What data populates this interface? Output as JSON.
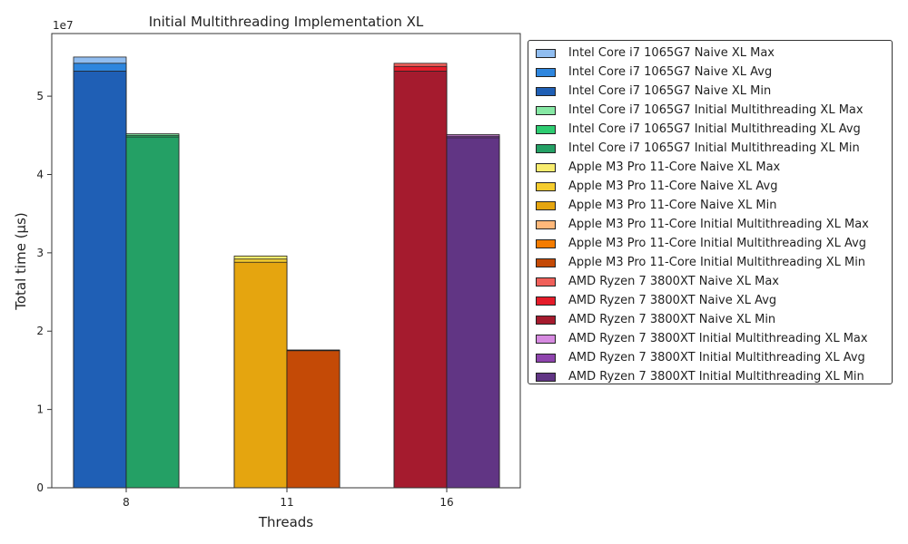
{
  "chart_data": {
    "type": "bar",
    "title": "Initial Multithreading Implementation XL",
    "xlabel": "Threads",
    "ylabel": "Total time (µs)",
    "y_multiplier_label": "1e7",
    "ylim": [
      0,
      58000000.0
    ],
    "yticks": [
      0,
      10000000.0,
      20000000.0,
      30000000.0,
      40000000.0,
      50000000.0
    ],
    "ytick_labels": [
      "0",
      "1",
      "2",
      "3",
      "4",
      "5"
    ],
    "categories": [
      "8",
      "11",
      "16"
    ],
    "legend_position": "outside-right",
    "grid": false,
    "groups": [
      {
        "threads": "8",
        "bars": [
          {
            "processor": "Intel Core i7 1065G7",
            "impl": "Naive XL",
            "max": 55000000.0,
            "avg": 54200000.0,
            "min": 53200000.0,
            "colors": {
              "max": "#90bdf0",
              "avg": "#2e86de",
              "min": "#1f5fb5"
            }
          },
          {
            "processor": "Intel Core i7 1065G7",
            "impl": "Initial Multithreading XL",
            "max": 45200000.0,
            "avg": 45000000.0,
            "min": 44800000.0,
            "colors": {
              "max": "#86e8a4",
              "avg": "#2ecc71",
              "min": "#24a065"
            }
          }
        ]
      },
      {
        "threads": "11",
        "bars": [
          {
            "processor": "Apple M3 Pro 11-Core",
            "impl": "Naive XL",
            "max": 29600000.0,
            "avg": 29200000.0,
            "min": 28800000.0,
            "colors": {
              "max": "#f8ec6e",
              "avg": "#f5cc2e",
              "min": "#e5a50f"
            }
          },
          {
            "processor": "Apple M3 Pro 11-Core",
            "impl": "Initial Multithreading XL",
            "max": 17600000.0,
            "avg": 17550000.0,
            "min": 17500000.0,
            "colors": {
              "max": "#ffb87a",
              "avg": "#f57c00",
              "min": "#c44a06"
            }
          }
        ]
      },
      {
        "threads": "16",
        "bars": [
          {
            "processor": "AMD Ryzen 7 3800XT",
            "impl": "Naive XL",
            "max": 54200000.0,
            "avg": 53800000.0,
            "min": 53200000.0,
            "colors": {
              "max": "#f0605a",
              "avg": "#e51c2a",
              "min": "#a51b2e"
            }
          },
          {
            "processor": "AMD Ryzen 7 3800XT",
            "impl": "Initial Multithreading XL",
            "max": 45100000.0,
            "avg": 44900000.0,
            "min": 44700000.0,
            "colors": {
              "max": "#d68ae0",
              "avg": "#8e44ad",
              "min": "#613584"
            }
          }
        ]
      }
    ]
  },
  "legend": {
    "items": [
      {
        "label": "Intel Core i7 1065G7 Naive XL Max",
        "color": "#90bdf0"
      },
      {
        "label": "Intel Core i7 1065G7 Naive XL Avg",
        "color": "#2e86de"
      },
      {
        "label": "Intel Core i7 1065G7 Naive XL Min",
        "color": "#1f5fb5"
      },
      {
        "label": "Intel Core i7 1065G7 Initial Multithreading XL Max",
        "color": "#86e8a4"
      },
      {
        "label": "Intel Core i7 1065G7 Initial Multithreading XL Avg",
        "color": "#2ecc71"
      },
      {
        "label": "Intel Core i7 1065G7 Initial Multithreading XL Min",
        "color": "#24a065"
      },
      {
        "label": "Apple M3 Pro 11-Core Naive XL Max",
        "color": "#f8ec6e"
      },
      {
        "label": "Apple M3 Pro 11-Core Naive XL Avg",
        "color": "#f5cc2e"
      },
      {
        "label": "Apple M3 Pro 11-Core Naive XL Min",
        "color": "#e5a50f"
      },
      {
        "label": "Apple M3 Pro 11-Core Initial Multithreading XL Max",
        "color": "#ffb87a"
      },
      {
        "label": "Apple M3 Pro 11-Core Initial Multithreading XL Avg",
        "color": "#f57c00"
      },
      {
        "label": "Apple M3 Pro 11-Core Initial Multithreading XL Min",
        "color": "#c44a06"
      },
      {
        "label": "AMD Ryzen 7 3800XT Naive XL Max",
        "color": "#f0605a"
      },
      {
        "label": "AMD Ryzen 7 3800XT Naive XL Avg",
        "color": "#e51c2a"
      },
      {
        "label": "AMD Ryzen 7 3800XT Naive XL Min",
        "color": "#a51b2e"
      },
      {
        "label": "AMD Ryzen 7 3800XT Initial Multithreading XL Max",
        "color": "#d68ae0"
      },
      {
        "label": "AMD Ryzen 7 3800XT Initial Multithreading XL Avg",
        "color": "#8e44ad"
      },
      {
        "label": "AMD Ryzen 7 3800XT Initial Multithreading XL Min",
        "color": "#613584"
      }
    ]
  }
}
